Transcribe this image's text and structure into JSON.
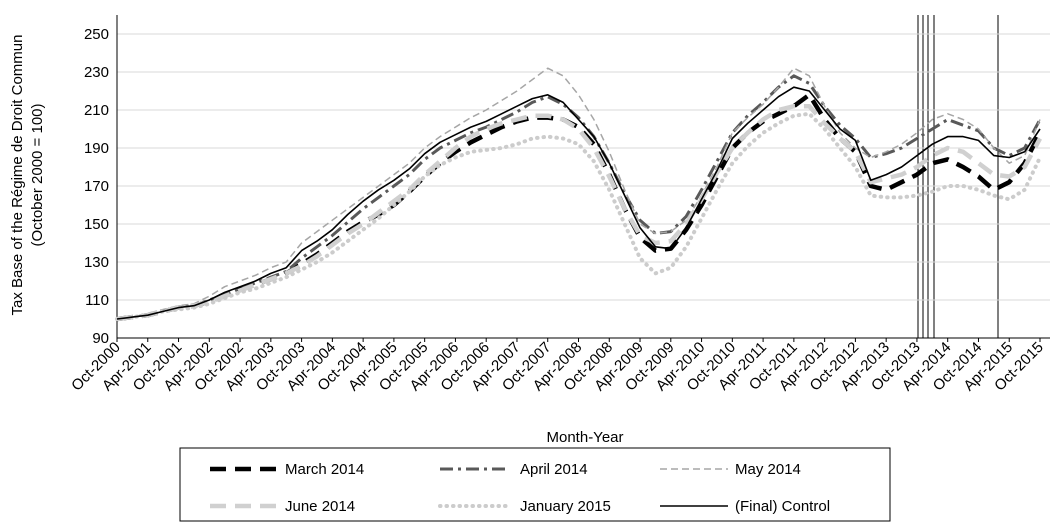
{
  "chart_data": {
    "type": "line",
    "y_label": [
      "Tax Base of the Régime de Droit Commun",
      "(October 2000 = 100)"
    ],
    "x_label": "Month-Year",
    "categories": [
      "Oct-2000",
      null,
      "Apr-2001",
      null,
      "Oct-2001",
      null,
      "Apr-2002",
      null,
      "Oct-2002",
      null,
      "Apr-2003",
      null,
      "Oct-2003",
      null,
      "Apr-2004",
      null,
      "Oct-2004",
      null,
      "Apr-2005",
      null,
      "Oct-2005",
      null,
      "Apr-2006",
      null,
      "Oct-2006",
      null,
      "Apr-2007",
      null,
      "Oct-2007",
      null,
      "Apr-2008",
      null,
      "Oct-2008",
      null,
      "Apr-2009",
      null,
      "Oct-2009",
      null,
      "Apr-2010",
      null,
      "Oct-2010",
      null,
      "Apr-2011",
      null,
      "Oct-2011",
      null,
      "Apr-2012",
      null,
      "Oct-2012",
      null,
      "Apr-2013",
      null,
      "Oct-2013",
      null,
      "Apr-2014",
      null,
      "Oct-2014",
      null,
      "Apr-2015",
      null,
      "Oct-2015"
    ],
    "series": [
      {
        "name": "March 2014",
        "color": "#000000",
        "style": "thick-dash",
        "values": [
          100,
          101,
          102,
          104,
          106,
          107,
          109,
          113,
          116,
          118,
          121,
          124,
          129,
          134,
          140,
          146,
          151,
          155,
          160,
          167,
          175,
          182,
          188,
          193,
          197,
          201,
          204,
          206,
          206,
          205,
          201,
          192,
          176,
          158,
          143,
          136,
          137,
          147,
          160,
          175,
          190,
          198,
          204,
          208,
          212,
          218,
          205,
          195,
          188,
          170,
          168,
          172,
          176,
          182,
          184,
          180,
          175,
          168,
          172,
          182,
          198
        ]
      },
      {
        "name": "April 2014",
        "color": "#595959",
        "style": "dash-dot",
        "values": [
          100,
          101,
          102,
          104,
          106,
          107,
          110,
          113,
          116,
          119,
          122,
          125,
          132,
          138,
          144,
          151,
          158,
          164,
          170,
          176,
          184,
          190,
          194,
          198,
          201,
          205,
          209,
          214,
          217,
          213,
          206,
          196,
          182,
          166,
          152,
          145,
          146,
          154,
          168,
          183,
          198,
          207,
          214,
          222,
          228,
          224,
          212,
          202,
          195,
          185,
          187,
          190,
          195,
          200,
          205,
          202,
          199,
          190,
          186,
          190,
          205
        ]
      },
      {
        "name": "May 2014",
        "color": "#a6a6a6",
        "style": "thin-dash",
        "values": [
          100,
          101,
          103,
          105,
          107,
          108,
          112,
          117,
          120,
          123,
          127,
          130,
          140,
          146,
          152,
          158,
          164,
          170,
          176,
          182,
          190,
          196,
          201,
          206,
          210,
          215,
          220,
          226,
          232,
          228,
          218,
          205,
          188,
          168,
          150,
          145,
          146,
          152,
          165,
          180,
          198,
          206,
          213,
          222,
          232,
          228,
          212,
          198,
          190,
          185,
          188,
          192,
          198,
          205,
          208,
          205,
          200,
          190,
          182,
          186,
          205
        ]
      },
      {
        "name": "June 2014",
        "color": "#d0d0d0",
        "style": "thick-dash",
        "values": [
          100,
          101,
          102,
          104,
          106,
          107,
          109,
          112,
          115,
          118,
          121,
          124,
          128,
          133,
          139,
          145,
          150,
          156,
          162,
          168,
          176,
          183,
          190,
          196,
          200,
          203,
          205,
          207,
          207,
          205,
          200,
          190,
          175,
          158,
          144,
          140,
          141,
          150,
          163,
          177,
          190,
          198,
          205,
          210,
          212,
          212,
          203,
          195,
          188,
          172,
          174,
          176,
          180,
          186,
          190,
          188,
          182,
          176,
          175,
          180,
          195
        ]
      },
      {
        "name": "January 2015",
        "color": "#cccccc",
        "style": "dotted",
        "values": [
          100,
          101,
          102,
          104,
          105,
          106,
          108,
          111,
          114,
          116,
          119,
          122,
          126,
          130,
          135,
          141,
          147,
          153,
          160,
          167,
          175,
          181,
          185,
          188,
          189,
          190,
          192,
          195,
          196,
          195,
          192,
          183,
          168,
          150,
          132,
          124,
          127,
          138,
          153,
          168,
          182,
          191,
          198,
          203,
          207,
          208,
          200,
          190,
          180,
          165,
          164,
          164,
          165,
          167,
          170,
          170,
          168,
          165,
          163,
          168,
          185
        ]
      },
      {
        "name": "(Final) Control",
        "color": "#000000",
        "style": "solid",
        "values": [
          100,
          101,
          102,
          104,
          106,
          107,
          110,
          114,
          117,
          120,
          124,
          127,
          136,
          141,
          147,
          155,
          162,
          168,
          173,
          179,
          187,
          193,
          197,
          201,
          204,
          208,
          212,
          216,
          218,
          214,
          205,
          196,
          182,
          165,
          148,
          138,
          137,
          148,
          163,
          178,
          195,
          203,
          210,
          217,
          222,
          220,
          210,
          200,
          194,
          173,
          176,
          180,
          186,
          192,
          196,
          196,
          194,
          186,
          185,
          188,
          200
        ]
      }
    ],
    "ylim": [
      90,
      260
    ],
    "yticks": [
      90,
      110,
      130,
      150,
      170,
      190,
      210,
      230,
      250
    ],
    "grid": true
  }
}
